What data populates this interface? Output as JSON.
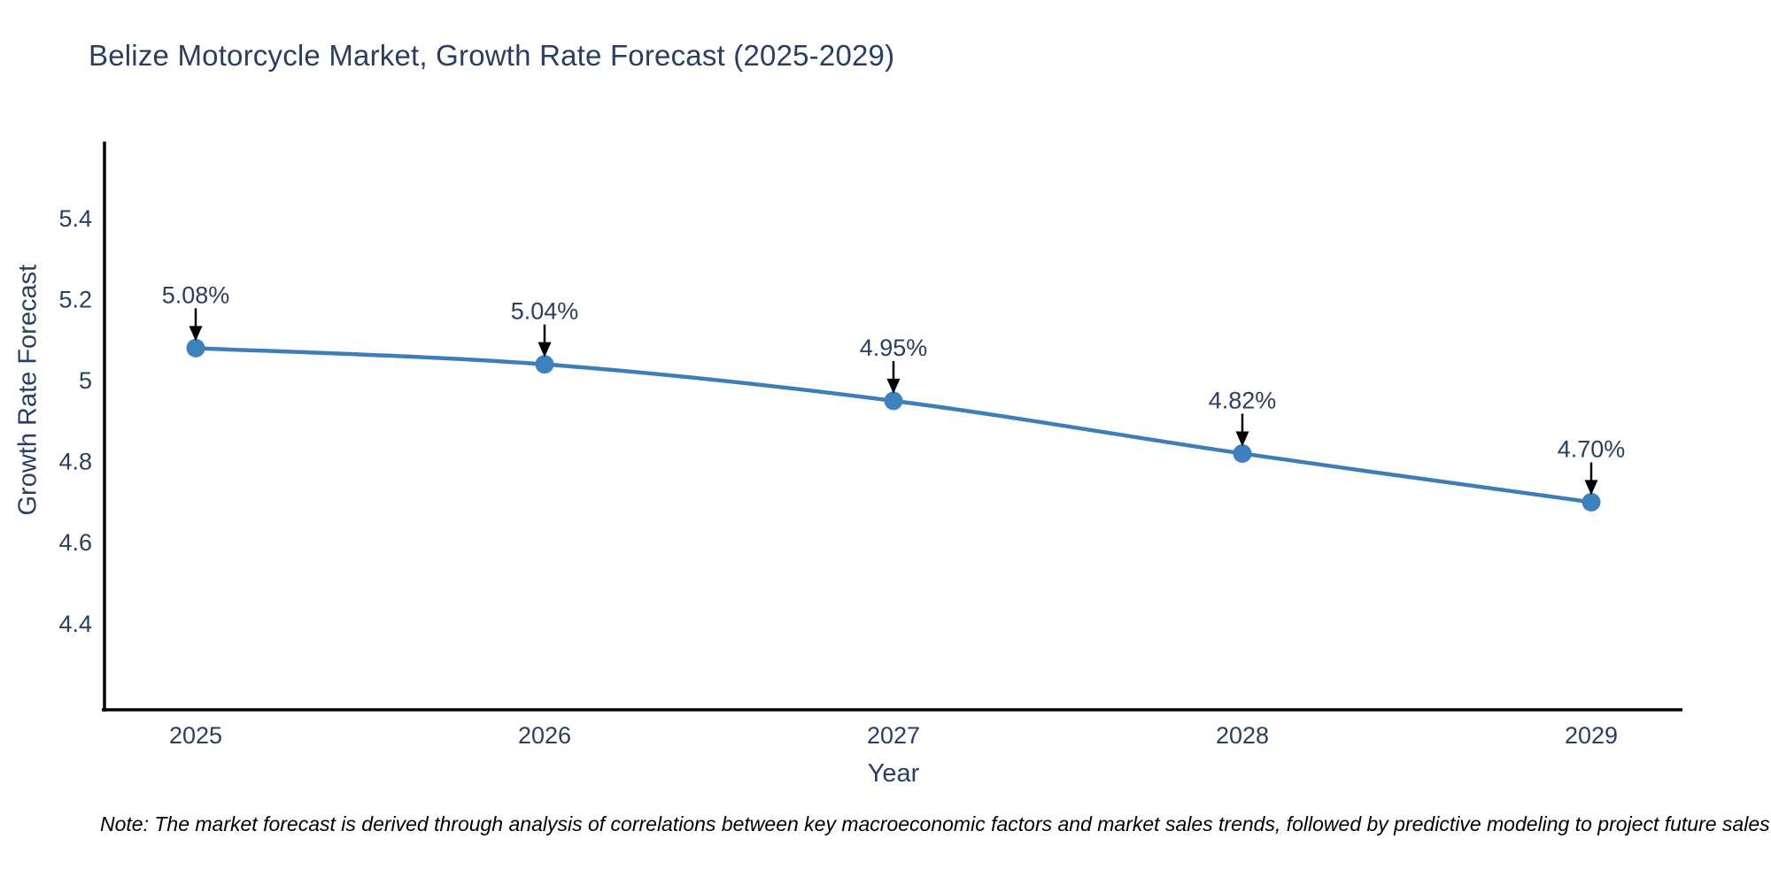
{
  "title": "Belize Motorcycle Market, Growth Rate Forecast (2025-2029)",
  "note": "Note: The market forecast is derived through analysis of correlations between key macroeconomic factors and market sales trends, followed by predictive modeling to project future sales",
  "chart_data": {
    "type": "line",
    "title": "Belize Motorcycle Market, Growth Rate Forecast (2025-2029)",
    "xlabel": "Year",
    "ylabel": "Growth Rate Forecast",
    "x": [
      2025,
      2026,
      2027,
      2028,
      2029
    ],
    "series": [
      {
        "name": "Growth Rate Forecast",
        "values": [
          5.08,
          5.04,
          4.95,
          4.82,
          4.7
        ]
      }
    ],
    "point_labels": [
      "5.08%",
      "5.04%",
      "4.95%",
      "4.82%",
      "4.70%"
    ],
    "y_ticks": [
      5.4,
      5.2,
      5.0,
      4.8,
      4.6,
      4.4
    ],
    "y_tick_labels": [
      "5.4",
      "5.2",
      "5",
      "4.8",
      "4.6",
      "4.4"
    ],
    "x_tick_labels": [
      "2025",
      "2026",
      "2027",
      "2028",
      "2029"
    ],
    "ylim": [
      4.19,
      5.59
    ],
    "grid": false,
    "legend": "none",
    "line_color": "#3e7eb8",
    "marker_color": "#3f80bf",
    "axis_color": "#000000",
    "text_color": "#2a3f5f",
    "annotation_arrow_color": "#000000",
    "background_color": "#ffffff"
  }
}
